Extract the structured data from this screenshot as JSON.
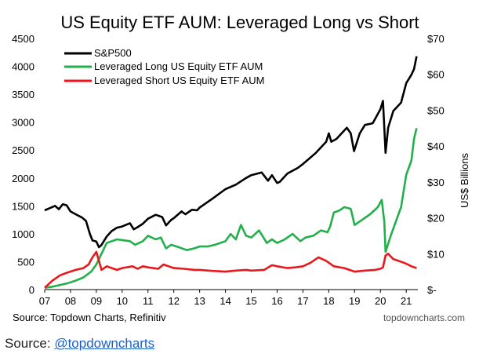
{
  "footer": {
    "label": "Source:",
    "link": "@topdowncharts"
  },
  "chart_data": {
    "type": "line",
    "title": "US Equity ETF AUM: Leveraged Long vs Short",
    "y_left": {
      "ticks": [
        "0",
        "500",
        "1000",
        "1500",
        "2000",
        "2500",
        "3000",
        "3500",
        "4000",
        "4500"
      ],
      "range": [
        0,
        4500
      ]
    },
    "y_right": {
      "ticks": [
        "$-",
        "$10",
        "$20",
        "$30",
        "$40",
        "$50",
        "$60",
        "$70"
      ],
      "range": [
        0,
        70
      ],
      "label": "US$ Billions"
    },
    "x_ticks": [
      "07",
      "08",
      "09",
      "10",
      "11",
      "12",
      "13",
      "14",
      "15",
      "16",
      "17",
      "18",
      "19",
      "20",
      "21"
    ],
    "x_range": [
      2007,
      2021.45
    ],
    "source": "Source: Topdown Charts, Refinitiv",
    "credit": "topdowncharts.com",
    "colors": {
      "sp500": "#000000",
      "long": "#22b04a",
      "short": "#e8191c"
    },
    "series": [
      {
        "name": "S&P500",
        "axis": "left",
        "x": [
          2007.0,
          2007.2,
          2007.4,
          2007.55,
          2007.7,
          2007.85,
          2008.0,
          2008.2,
          2008.45,
          2008.6,
          2008.75,
          2008.85,
          2009.0,
          2009.1,
          2009.2,
          2009.4,
          2009.6,
          2009.8,
          2010.0,
          2010.3,
          2010.45,
          2010.6,
          2010.8,
          2011.0,
          2011.3,
          2011.55,
          2011.7,
          2011.9,
          2012.0,
          2012.3,
          2012.45,
          2012.7,
          2012.9,
          2013.0,
          2013.5,
          2014.0,
          2014.4,
          2014.8,
          2015.0,
          2015.4,
          2015.65,
          2015.8,
          2016.0,
          2016.1,
          2016.4,
          2016.8,
          2017.0,
          2017.5,
          2017.9,
          2018.0,
          2018.1,
          2018.3,
          2018.7,
          2018.85,
          2018.98,
          2019.2,
          2019.4,
          2019.7,
          2020.0,
          2020.1,
          2020.2,
          2020.3,
          2020.5,
          2020.8,
          2021.0,
          2021.2,
          2021.3,
          2021.4
        ],
        "y": [
          1420,
          1460,
          1500,
          1440,
          1530,
          1510,
          1400,
          1350,
          1290,
          1230,
          1000,
          880,
          860,
          760,
          800,
          950,
          1050,
          1110,
          1130,
          1190,
          1080,
          1120,
          1180,
          1270,
          1340,
          1300,
          1150,
          1250,
          1280,
          1400,
          1350,
          1430,
          1420,
          1470,
          1630,
          1800,
          1880,
          2000,
          2050,
          2100,
          1950,
          2050,
          1910,
          1930,
          2080,
          2180,
          2250,
          2450,
          2650,
          2800,
          2650,
          2700,
          2900,
          2800,
          2480,
          2800,
          2950,
          2980,
          3230,
          3380,
          2450,
          2900,
          3200,
          3350,
          3700,
          3850,
          3950,
          4180
        ]
      },
      {
        "name": "Leveraged Long US Equity ETF AUM",
        "axis": "right",
        "x": [
          2007.0,
          2007.3,
          2007.6,
          2007.9,
          2008.2,
          2008.5,
          2008.8,
          2009.0,
          2009.2,
          2009.4,
          2009.6,
          2009.8,
          2010.0,
          2010.3,
          2010.5,
          2010.8,
          2011.0,
          2011.3,
          2011.5,
          2011.7,
          2011.9,
          2012.2,
          2012.5,
          2012.8,
          2013.0,
          2013.3,
          2013.6,
          2014.0,
          2014.2,
          2014.4,
          2014.6,
          2014.8,
          2015.0,
          2015.3,
          2015.6,
          2015.8,
          2016.0,
          2016.3,
          2016.6,
          2016.9,
          2017.1,
          2017.4,
          2017.7,
          2017.95,
          2018.05,
          2018.2,
          2018.4,
          2018.6,
          2018.85,
          2019.0,
          2019.3,
          2019.6,
          2019.9,
          2020.05,
          2020.15,
          2020.2,
          2020.4,
          2020.6,
          2020.8,
          2021.0,
          2021.2,
          2021.3,
          2021.4
        ],
        "y": [
          0.5,
          0.8,
          1.3,
          1.8,
          2.5,
          3.4,
          5.0,
          7.0,
          10.0,
          13.0,
          13.5,
          14.0,
          13.8,
          13.5,
          12.5,
          13.5,
          15.0,
          14.0,
          14.5,
          11.5,
          12.5,
          11.8,
          11.0,
          11.5,
          12.0,
          12.0,
          12.5,
          13.5,
          15.5,
          14.0,
          18.0,
          15.0,
          14.5,
          16.5,
          13.0,
          14.0,
          13.0,
          14.0,
          15.5,
          13.5,
          14.5,
          15.0,
          16.5,
          16.0,
          17.5,
          21.5,
          22.0,
          23.0,
          22.5,
          18.0,
          19.5,
          21.0,
          23.0,
          25.0,
          19.0,
          10.5,
          15.0,
          19.0,
          23.0,
          32.0,
          36.0,
          42.0,
          45.0
        ]
      },
      {
        "name": "Leveraged Short US Equity ETF AUM",
        "axis": "right",
        "x": [
          2007.0,
          2007.3,
          2007.6,
          2007.9,
          2008.2,
          2008.5,
          2008.7,
          2008.85,
          2009.0,
          2009.1,
          2009.2,
          2009.4,
          2009.6,
          2009.8,
          2010.0,
          2010.4,
          2010.6,
          2010.8,
          2011.0,
          2011.4,
          2011.6,
          2011.8,
          2012.0,
          2012.4,
          2012.8,
          2013.0,
          2013.5,
          2014.0,
          2014.4,
          2014.8,
          2015.0,
          2015.5,
          2015.8,
          2016.0,
          2016.4,
          2016.7,
          2017.0,
          2017.3,
          2017.6,
          2017.9,
          2018.2,
          2018.6,
          2019.0,
          2019.4,
          2019.8,
          2020.0,
          2020.1,
          2020.2,
          2020.3,
          2020.5,
          2020.7,
          2020.9,
          2021.0,
          2021.2,
          2021.4
        ],
        "y": [
          0.5,
          2.5,
          4.0,
          4.8,
          5.5,
          6.0,
          7.0,
          9.0,
          10.5,
          8.0,
          5.5,
          6.5,
          6.0,
          5.5,
          6.0,
          6.5,
          5.8,
          6.5,
          6.2,
          5.8,
          7.0,
          6.5,
          6.0,
          5.8,
          5.5,
          5.5,
          5.2,
          5.0,
          5.3,
          5.5,
          5.3,
          5.5,
          6.8,
          6.5,
          6.0,
          6.2,
          6.5,
          7.5,
          9.0,
          8.0,
          6.5,
          6.0,
          5.0,
          5.3,
          5.5,
          5.8,
          6.2,
          9.5,
          10.0,
          8.5,
          8.0,
          7.5,
          7.2,
          6.5,
          6.0
        ]
      }
    ]
  }
}
